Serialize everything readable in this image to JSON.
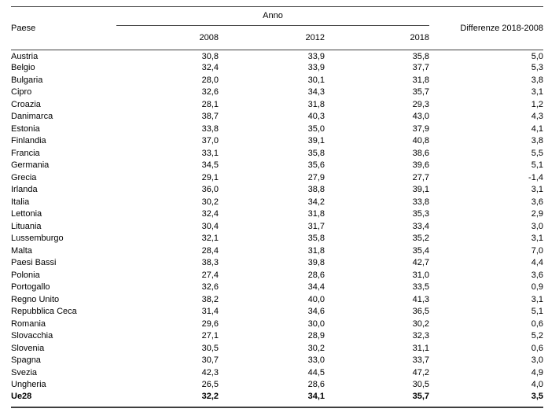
{
  "colors": {
    "background": "#ffffff",
    "text": "#000000",
    "rule": "#3f3f3f"
  },
  "table": {
    "col_paese": "Paese",
    "col_anno": "Anno",
    "col_years": [
      "2008",
      "2012",
      "2018"
    ],
    "col_diff": "Differenze 2018-2008",
    "rows": [
      {
        "paese": "Austria",
        "y2008": "30,8",
        "y2012": "33,9",
        "y2018": "35,8",
        "diff": "5,0",
        "bold": false
      },
      {
        "paese": "Belgio",
        "y2008": "32,4",
        "y2012": "33,9",
        "y2018": "37,7",
        "diff": "5,3",
        "bold": false
      },
      {
        "paese": "Bulgaria",
        "y2008": "28,0",
        "y2012": "30,1",
        "y2018": "31,8",
        "diff": "3,8",
        "bold": false
      },
      {
        "paese": "Cipro",
        "y2008": "32,6",
        "y2012": "34,3",
        "y2018": "35,7",
        "diff": "3,1",
        "bold": false
      },
      {
        "paese": "Croazia",
        "y2008": "28,1",
        "y2012": "31,8",
        "y2018": "29,3",
        "diff": "1,2",
        "bold": false
      },
      {
        "paese": "Danimarca",
        "y2008": "38,7",
        "y2012": "40,3",
        "y2018": "43,0",
        "diff": "4,3",
        "bold": false
      },
      {
        "paese": "Estonia",
        "y2008": "33,8",
        "y2012": "35,0",
        "y2018": "37,9",
        "diff": "4,1",
        "bold": false
      },
      {
        "paese": "Finlandia",
        "y2008": "37,0",
        "y2012": "39,1",
        "y2018": "40,8",
        "diff": "3,8",
        "bold": false
      },
      {
        "paese": "Francia",
        "y2008": "33,1",
        "y2012": "35,8",
        "y2018": "38,6",
        "diff": "5,5",
        "bold": false
      },
      {
        "paese": "Germania",
        "y2008": "34,5",
        "y2012": "35,6",
        "y2018": "39,6",
        "diff": "5,1",
        "bold": false
      },
      {
        "paese": "Grecia",
        "y2008": "29,1",
        "y2012": "27,9",
        "y2018": "27,7",
        "diff": "-1,4",
        "bold": false
      },
      {
        "paese": "Irlanda",
        "y2008": "36,0",
        "y2012": "38,8",
        "y2018": "39,1",
        "diff": "3,1",
        "bold": false
      },
      {
        "paese": "Italia",
        "y2008": "30,2",
        "y2012": "34,2",
        "y2018": "33,8",
        "diff": "3,6",
        "bold": false
      },
      {
        "paese": "Lettonia",
        "y2008": "32,4",
        "y2012": "31,8",
        "y2018": "35,3",
        "diff": "2,9",
        "bold": false
      },
      {
        "paese": "Lituania",
        "y2008": "30,4",
        "y2012": "31,7",
        "y2018": "33,4",
        "diff": "3,0",
        "bold": false
      },
      {
        "paese": "Lussemburgo",
        "y2008": "32,1",
        "y2012": "35,8",
        "y2018": "35,2",
        "diff": "3,1",
        "bold": false
      },
      {
        "paese": "Malta",
        "y2008": "28,4",
        "y2012": "31,8",
        "y2018": "35,4",
        "diff": "7,0",
        "bold": false
      },
      {
        "paese": "Paesi Bassi",
        "y2008": "38,3",
        "y2012": "39,8",
        "y2018": "42,7",
        "diff": "4,4",
        "bold": false
      },
      {
        "paese": "Polonia",
        "y2008": "27,4",
        "y2012": "28,6",
        "y2018": "31,0",
        "diff": "3,6",
        "bold": false
      },
      {
        "paese": "Portogallo",
        "y2008": "32,6",
        "y2012": "34,4",
        "y2018": "33,5",
        "diff": "0,9",
        "bold": false
      },
      {
        "paese": "Regno Unito",
        "y2008": "38,2",
        "y2012": "40,0",
        "y2018": "41,3",
        "diff": "3,1",
        "bold": false
      },
      {
        "paese": "Repubblica Ceca",
        "y2008": "31,4",
        "y2012": "34,6",
        "y2018": "36,5",
        "diff": "5,1",
        "bold": false
      },
      {
        "paese": "Romania",
        "y2008": "29,6",
        "y2012": "30,0",
        "y2018": "30,2",
        "diff": "0,6",
        "bold": false
      },
      {
        "paese": "Slovacchia",
        "y2008": "27,1",
        "y2012": "28,9",
        "y2018": "32,3",
        "diff": "5,2",
        "bold": false
      },
      {
        "paese": "Slovenia",
        "y2008": "30,5",
        "y2012": "30,2",
        "y2018": "31,1",
        "diff": "0,6",
        "bold": false
      },
      {
        "paese": "Spagna",
        "y2008": "30,7",
        "y2012": "33,0",
        "y2018": "33,7",
        "diff": "3,0",
        "bold": false
      },
      {
        "paese": "Svezia",
        "y2008": "42,3",
        "y2012": "44,5",
        "y2018": "47,2",
        "diff": "4,9",
        "bold": false
      },
      {
        "paese": "Ungheria",
        "y2008": "26,5",
        "y2012": "28,6",
        "y2018": "30,5",
        "diff": "4,0",
        "bold": false
      },
      {
        "paese": "Ue28",
        "y2008": "32,2",
        "y2012": "34,1",
        "y2018": "35,7",
        "diff": "3,5",
        "bold": true
      }
    ]
  }
}
